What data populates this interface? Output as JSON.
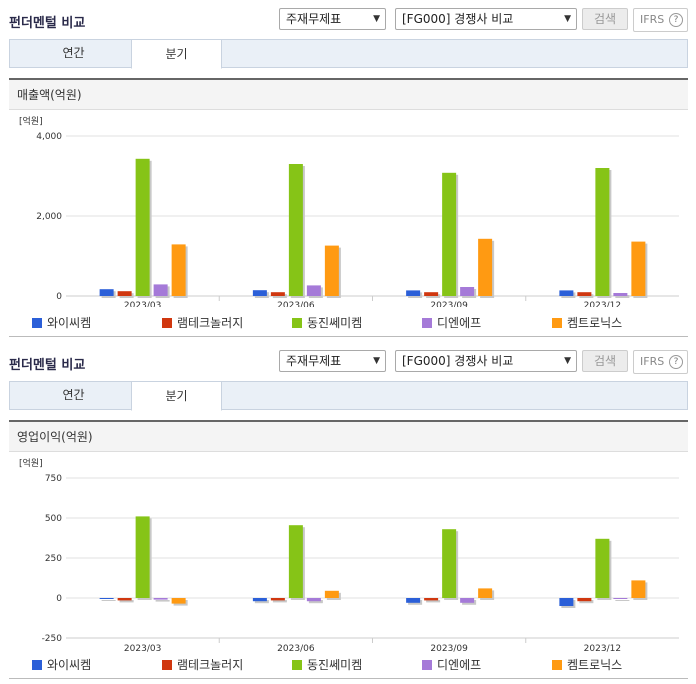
{
  "sections": [
    {
      "title": "펀더멘털 비교",
      "select_type": "주재무제표",
      "select_group": "[FG000] 경쟁사 비교",
      "search_label": "검색",
      "ifrs_label": "IFRS",
      "help_label": "?",
      "tabs": [
        "연간",
        "분기"
      ],
      "active_tab": "분기",
      "metric_label": "매출액(억원)"
    },
    {
      "title": "펀더멘털 비교",
      "select_type": "주재무제표",
      "select_group": "[FG000] 경쟁사 비교",
      "search_label": "검색",
      "ifrs_label": "IFRS",
      "help_label": "?",
      "tabs": [
        "연간",
        "분기"
      ],
      "active_tab": "분기",
      "metric_label": "영업이익(억원)"
    }
  ],
  "colors": {
    "와이씨켐": "#2b5fd8",
    "램테크놀러지": "#d0370f",
    "동진쎄미켐": "#86c417",
    "디엔에프": "#a57ad8",
    "켐트로닉스": "#ff9a12"
  },
  "chart_data": [
    {
      "type": "bar",
      "title": "매출액(억원)",
      "unit_label": "[억원]",
      "categories": [
        "2023/03",
        "2023/06",
        "2023/09",
        "2023/12"
      ],
      "ylim": [
        0,
        4000
      ],
      "yticks": [
        "0",
        "2,000",
        "4,000"
      ],
      "ytick_values": [
        0,
        2000,
        4000
      ],
      "series": [
        {
          "name": "와이씨켐",
          "values": [
            170,
            145,
            140,
            140
          ]
        },
        {
          "name": "램테크놀러지",
          "values": [
            120,
            95,
            95,
            95
          ]
        },
        {
          "name": "동진쎄미켐",
          "values": [
            3430,
            3300,
            3080,
            3200
          ]
        },
        {
          "name": "디엔에프",
          "values": [
            290,
            265,
            225,
            75
          ]
        },
        {
          "name": "켐트로닉스",
          "values": [
            1290,
            1260,
            1430,
            1360
          ]
        }
      ],
      "legend_position": "bottom",
      "grid": true
    },
    {
      "type": "bar",
      "title": "영업이익(억원)",
      "unit_label": "[억원]",
      "categories": [
        "2023/03",
        "2023/06",
        "2023/09",
        "2023/12"
      ],
      "ylim": [
        -250,
        750
      ],
      "yticks": [
        "-250",
        "0",
        "250",
        "500",
        "750"
      ],
      "ytick_values": [
        -250,
        0,
        250,
        500,
        750
      ],
      "series": [
        {
          "name": "와이씨켐",
          "values": [
            -5,
            -20,
            -30,
            -50
          ]
        },
        {
          "name": "램테크놀러지",
          "values": [
            -15,
            -15,
            -15,
            -20
          ]
        },
        {
          "name": "동진쎄미켐",
          "values": [
            510,
            455,
            430,
            370
          ]
        },
        {
          "name": "디엔에프",
          "values": [
            -10,
            -20,
            -30,
            0
          ]
        },
        {
          "name": "켐트로닉스",
          "values": [
            -35,
            45,
            60,
            110
          ]
        }
      ],
      "legend_position": "bottom",
      "grid": true
    }
  ]
}
